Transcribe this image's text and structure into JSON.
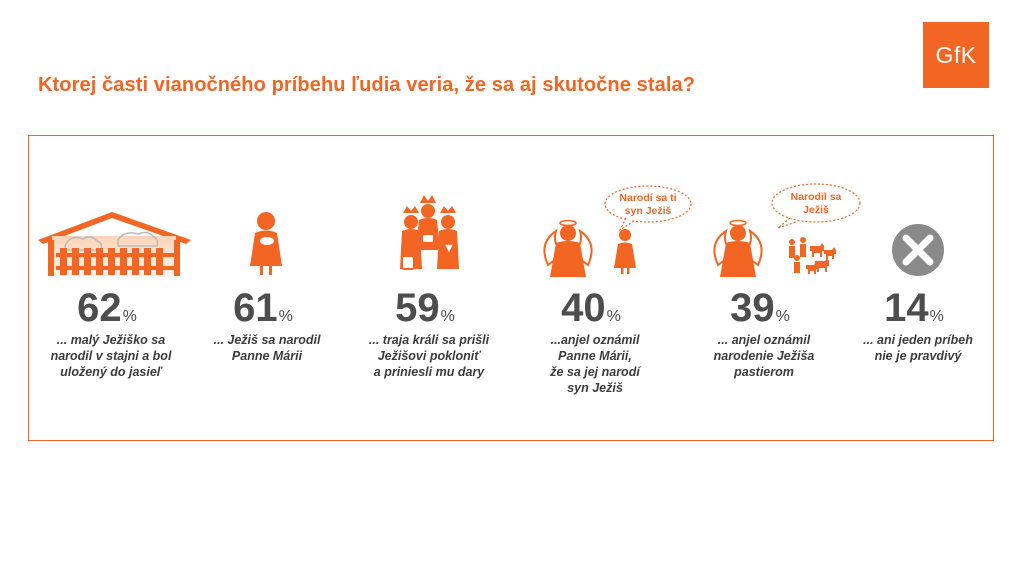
{
  "title": "Ktorej časti vianočného príbehu ľudia veria, že sa aj skutočne stala?",
  "logo": "GfK",
  "colors": {
    "accent": "#f26522",
    "text": "#4d4d4d",
    "cross": "#8a8a8a"
  },
  "chart_data": {
    "type": "bar",
    "value_suffix": "%",
    "categories": [
      "... malý Ježiško sa narodil v stajni a bol uložený do jasieľ",
      "... Ježiš sa narodil Panne Márii",
      "... traja králi sa prišli Ježišovi pokloniť a priniesli mu dary",
      "...anjel oznámil Panne Márii, že sa jej narodí syn Ježiš",
      "... anjel oznámil narodenie Ježiša pastierom",
      "... ani jeden príbeh nie je pravdivý"
    ],
    "values": [
      62,
      61,
      59,
      40,
      39,
      14
    ],
    "items": [
      {
        "value": "62",
        "caption": [
          "... malý Ježiško sa",
          "narodil v stajni a bol",
          "uložený do jasieľ"
        ],
        "icon": "stable-icon"
      },
      {
        "value": "61",
        "caption": [
          "... Ježiš sa narodil",
          "Panne Márii"
        ],
        "icon": "mary-icon"
      },
      {
        "value": "59",
        "caption": [
          "... traja králi  sa prišli",
          "Ježišovi pokloniť",
          "a priniesli mu dary"
        ],
        "icon": "three-kings-icon"
      },
      {
        "value": "40",
        "caption": [
          "...anjel oznámil",
          "Panne Márii,",
          "že sa jej narodí",
          "syn Ježiš"
        ],
        "icon": "angel-mary-icon",
        "bubble": [
          "Narodí sa ti",
          "syn Ježiš"
        ]
      },
      {
        "value": "39",
        "caption": [
          "... anjel oznámil",
          "narodenie Ježiša",
          "pastierom"
        ],
        "icon": "angel-shepherds-icon",
        "bubble": [
          "Narodil sa",
          "Ježiš"
        ]
      },
      {
        "value": "14",
        "caption": [
          "... ani jeden príbeh",
          "nie je pravdivý"
        ],
        "icon": "cross-icon"
      }
    ]
  }
}
